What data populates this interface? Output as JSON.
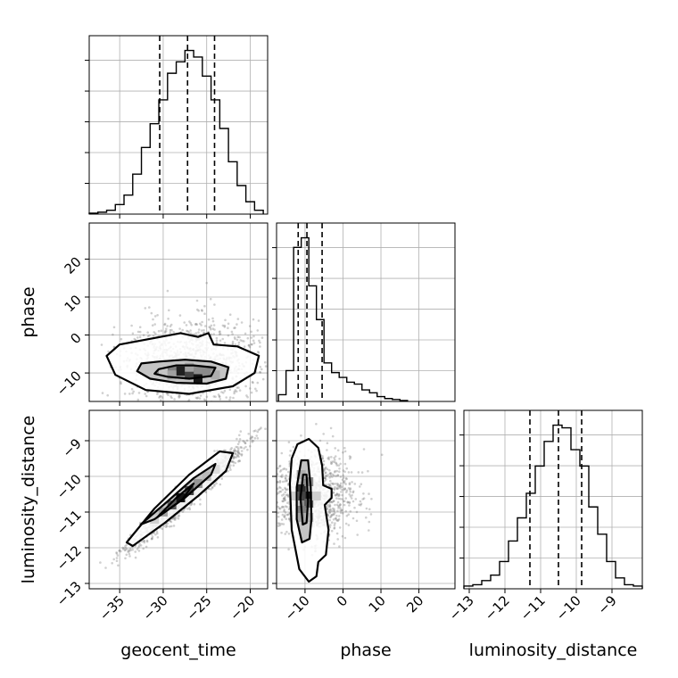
{
  "chart_data": {
    "type": "corner",
    "parameters": [
      "geocent_time",
      "phase",
      "luminosity_distance"
    ],
    "axis_labels": {
      "geocent_time": "geocent_time",
      "phase": "phase",
      "luminosity_distance": "luminosity_distance"
    },
    "ranges": {
      "geocent_time": [
        -38.5,
        -18
      ],
      "phase": [
        -17.5,
        29.5
      ],
      "luminosity_distance": [
        -13.15,
        -8.15
      ]
    },
    "ticks": {
      "geocent_time": [
        -35,
        -30,
        -25,
        -20
      ],
      "phase": [
        -10,
        0,
        10,
        20
      ],
      "luminosity_distance": [
        -13,
        -12,
        -11,
        -10,
        -9
      ]
    },
    "tick_labels": {
      "geocent_time": [
        "−35",
        "−30",
        "−25",
        "−20"
      ],
      "phase": [
        "−10",
        "0",
        "10",
        "20"
      ],
      "luminosity_distance": [
        "−13",
        "−12",
        "−11",
        "−10",
        "−9"
      ]
    },
    "quantiles": {
      "geocent_time": [
        -30.4,
        -27.2,
        -24.1
      ],
      "phase": [
        -11.8,
        -9.5,
        -5.5
      ],
      "luminosity_distance": [
        -11.3,
        -10.5,
        -9.85
      ]
    },
    "histograms": {
      "geocent_time": {
        "edges": [
          -38.5,
          -37.5,
          -36.5,
          -35.5,
          -34.5,
          -33.5,
          -32.5,
          -31.5,
          -30.5,
          -29.5,
          -28.5,
          -27.5,
          -26.5,
          -25.5,
          -24.5,
          -23.5,
          -22.5,
          -21.5,
          -20.5,
          -19.5,
          -18.5
        ],
        "counts": [
          1,
          2,
          4,
          10,
          20,
          42,
          70,
          95,
          120,
          148,
          160,
          172,
          165,
          145,
          120,
          90,
          55,
          30,
          13,
          4
        ]
      },
      "phase": {
        "edges": [
          -17,
          -15,
          -13,
          -11,
          -9,
          -7,
          -5,
          -3,
          -1,
          1,
          3,
          5,
          7,
          9,
          11,
          13,
          15,
          17
        ],
        "counts": [
          7,
          32,
          160,
          170,
          120,
          85,
          40,
          30,
          25,
          20,
          18,
          12,
          9,
          5,
          3,
          2,
          1
        ]
      },
      "luminosity_distance": {
        "edges": [
          -13.15,
          -12.9,
          -12.65,
          -12.4,
          -12.15,
          -11.9,
          -11.65,
          -11.4,
          -11.15,
          -10.9,
          -10.65,
          -10.4,
          -10.15,
          -9.9,
          -9.65,
          -9.4,
          -9.15,
          -8.9,
          -8.65,
          -8.4,
          -8.15
        ],
        "counts": [
          2,
          3,
          6,
          10,
          20,
          35,
          52,
          70,
          90,
          108,
          120,
          118,
          102,
          90,
          60,
          40,
          20,
          8,
          3,
          2
        ]
      }
    },
    "pairs": [
      {
        "x": "geocent_time",
        "y": "phase",
        "mean": [
          -27.2,
          -7.5
        ],
        "sd": [
          3.5,
          6
        ],
        "corr": 0.05,
        "skew_right": 2.5,
        "n_points": 1100,
        "seed": 11,
        "contours": [
          [
            [
              -36.5,
              -5.5
            ],
            [
              -35,
              -2.5
            ],
            [
              -31.5,
              -1
            ],
            [
              -28,
              0.5
            ],
            [
              -26,
              -0.5
            ],
            [
              -24.8,
              0.5
            ],
            [
              -24.2,
              -2.5
            ],
            [
              -21.5,
              -3
            ],
            [
              -19,
              -5.5
            ],
            [
              -19.5,
              -10
            ],
            [
              -22,
              -13.5
            ],
            [
              -27,
              -15.5
            ],
            [
              -32,
              -14.5
            ],
            [
              -35.5,
              -10.5
            ]
          ],
          [
            [
              -32.5,
              -7.5
            ],
            [
              -30.5,
              -7
            ],
            [
              -27.5,
              -6.5
            ],
            [
              -24.5,
              -7
            ],
            [
              -22.5,
              -8.5
            ],
            [
              -22.8,
              -11.5
            ],
            [
              -25,
              -12.8
            ],
            [
              -28.5,
              -12.6
            ],
            [
              -31.5,
              -11.5
            ],
            [
              -33,
              -9.5
            ]
          ],
          [
            [
              -30.5,
              -9
            ],
            [
              -28.5,
              -8
            ],
            [
              -26.5,
              -8
            ],
            [
              -24,
              -8.6
            ],
            [
              -24.5,
              -10.8
            ],
            [
              -27,
              -11.5
            ],
            [
              -29.5,
              -11
            ],
            [
              -31,
              -10.2
            ]
          ]
        ],
        "density_cells": [
          {
            "x": -28,
            "y": -9.5,
            "v": 0.95
          },
          {
            "x": -27,
            "y": -10.5,
            "v": 0.8
          },
          {
            "x": -26,
            "y": -11.5,
            "v": 1
          },
          {
            "x": -29,
            "y": -9.5,
            "v": 0.55
          },
          {
            "x": -25,
            "y": -9.5,
            "v": 0.5
          },
          {
            "x": -24,
            "y": -10.5,
            "v": 0.35
          },
          {
            "x": -30,
            "y": -9.5,
            "v": 0.25
          },
          {
            "x": -29,
            "y": -10.5,
            "v": 0.4
          },
          {
            "x": -27,
            "y": -8.5,
            "v": 0.4
          }
        ]
      },
      {
        "x": "geocent_time",
        "y": "luminosity_distance",
        "mean": [
          -27.2,
          -10.55
        ],
        "sd": [
          3.2,
          0.7
        ],
        "corr": 0.97,
        "skew_right": 0,
        "n_points": 1400,
        "seed": 23,
        "contours": [
          [
            [
              -34.2,
              -11.85
            ],
            [
              -31,
              -10.9
            ],
            [
              -27,
              -9.95
            ],
            [
              -23.5,
              -9.3
            ],
            [
              -22,
              -9.35
            ],
            [
              -22.8,
              -9.85
            ],
            [
              -26,
              -10.55
            ],
            [
              -29.8,
              -11.3
            ],
            [
              -33.5,
              -11.95
            ]
          ],
          [
            [
              -32.6,
              -11.35
            ],
            [
              -29.5,
              -10.7
            ],
            [
              -26.5,
              -10.05
            ],
            [
              -24,
              -9.65
            ],
            [
              -24.5,
              -9.95
            ],
            [
              -27.5,
              -10.6
            ],
            [
              -31,
              -11.2
            ]
          ],
          [
            [
              -30.7,
              -11.15
            ],
            [
              -28.5,
              -10.6
            ],
            [
              -26.5,
              -10.2
            ],
            [
              -27.8,
              -10.65
            ],
            [
              -29.8,
              -11
            ]
          ]
        ],
        "density_cells": [
          {
            "x": -28,
            "y": -10.6,
            "v": 1
          },
          {
            "x": -27,
            "y": -10.4,
            "v": 0.8
          },
          {
            "x": -29,
            "y": -10.8,
            "v": 0.7
          },
          {
            "x": -26,
            "y": -10.2,
            "v": 0.45
          },
          {
            "x": -30,
            "y": -11,
            "v": 0.4
          },
          {
            "x": -25,
            "y": -10,
            "v": 0.3
          },
          {
            "x": -31,
            "y": -11.2,
            "v": 0.2
          },
          {
            "x": -24,
            "y": -9.8,
            "v": 0.15
          }
        ]
      },
      {
        "x": "phase",
        "y": "luminosity_distance",
        "mean": [
          -8.5,
          -10.55
        ],
        "sd": [
          5,
          0.6
        ],
        "corr": 0.02,
        "skew_right": 3,
        "n_points": 1100,
        "seed": 37,
        "contours": [
          [
            [
              -12,
              -9.1
            ],
            [
              -9,
              -8.95
            ],
            [
              -6.5,
              -9.2
            ],
            [
              -5.5,
              -9.7
            ],
            [
              -5.2,
              -10.25
            ],
            [
              -3,
              -10.35
            ],
            [
              -3,
              -10.6
            ],
            [
              -4.8,
              -10.8
            ],
            [
              -3.8,
              -11.5
            ],
            [
              -4.5,
              -12.2
            ],
            [
              -6.5,
              -12.4
            ],
            [
              -7,
              -12.8
            ],
            [
              -9,
              -12.95
            ],
            [
              -11.5,
              -12.6
            ],
            [
              -13.5,
              -11.5
            ],
            [
              -14,
              -10.2
            ],
            [
              -13.5,
              -9.5
            ]
          ],
          [
            [
              -11,
              -9.55
            ],
            [
              -9.2,
              -9.55
            ],
            [
              -8.5,
              -10.3
            ],
            [
              -8.3,
              -11.2
            ],
            [
              -8.8,
              -11.75
            ],
            [
              -10.8,
              -11.85
            ],
            [
              -12.2,
              -11.2
            ],
            [
              -12.2,
              -10.3
            ]
          ],
          [
            [
              -10.5,
              -9.95
            ],
            [
              -9.6,
              -9.95
            ],
            [
              -9.2,
              -10.7
            ],
            [
              -9.6,
              -11.3
            ],
            [
              -10.6,
              -11.35
            ],
            [
              -11.2,
              -10.6
            ]
          ]
        ],
        "density_cells": [
          {
            "x": -9,
            "y": -10.55,
            "v": 1
          },
          {
            "x": -11,
            "y": -10.35,
            "v": 0.9
          },
          {
            "x": -11,
            "y": -10.55,
            "v": 0.8
          },
          {
            "x": -9,
            "y": -10.75,
            "v": 0.7
          },
          {
            "x": -11,
            "y": -10.95,
            "v": 0.55
          },
          {
            "x": -9,
            "y": -10.15,
            "v": 0.5
          },
          {
            "x": -11,
            "y": -11.15,
            "v": 0.4
          },
          {
            "x": -9,
            "y": -11.15,
            "v": 0.35
          },
          {
            "x": -11,
            "y": -9.95,
            "v": 0.35
          },
          {
            "x": -13,
            "y": -10.55,
            "v": 0.2
          },
          {
            "x": -7,
            "y": -10.55,
            "v": 0.2
          }
        ]
      }
    ],
    "grid": true,
    "legend": null
  }
}
